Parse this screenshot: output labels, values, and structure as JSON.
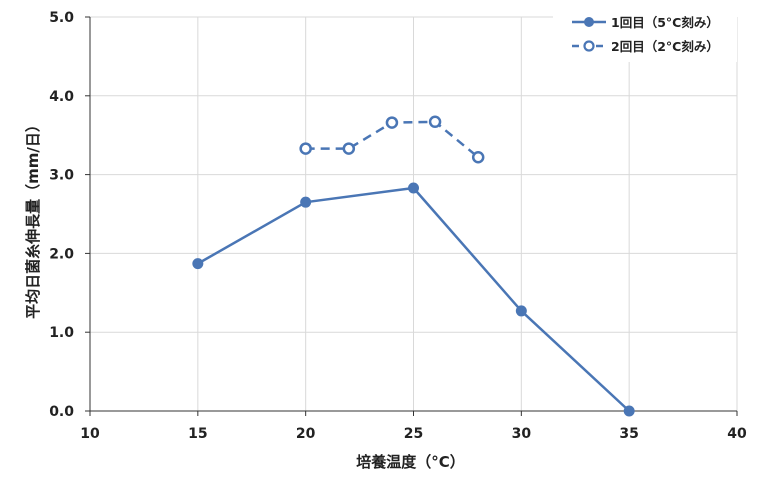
{
  "chart_data": {
    "type": "line",
    "xlabel": "培養温度（°C）",
    "ylabel": "平均日菌糸伸長量（mm/日）",
    "xlim": [
      10,
      40
    ],
    "ylim": [
      0,
      5
    ],
    "xticks": [
      10,
      15,
      20,
      25,
      30,
      35,
      40
    ],
    "xtick_labels": [
      "10",
      "15",
      "20",
      "25",
      "30",
      "35",
      "40"
    ],
    "yticks": [
      0,
      1,
      2,
      3,
      4,
      5
    ],
    "ytick_labels": [
      "0.0",
      "1.0",
      "2.0",
      "3.0",
      "4.0",
      "5.0"
    ],
    "grid": true,
    "legend_position": "top-right",
    "series": [
      {
        "name": "1回目（5°C刻み）",
        "x": [
          15,
          20,
          25,
          30,
          35
        ],
        "y": [
          1.87,
          2.65,
          2.83,
          1.27,
          0.0
        ],
        "color": "#4a76b5",
        "line": "solid",
        "marker": "filled-circle"
      },
      {
        "name": "2回目（2°C刻み）",
        "x": [
          20,
          22,
          24,
          26,
          28
        ],
        "y": [
          3.33,
          3.33,
          3.66,
          3.67,
          3.22
        ],
        "color": "#4a76b5",
        "line": "dashed",
        "marker": "open-circle"
      }
    ]
  }
}
